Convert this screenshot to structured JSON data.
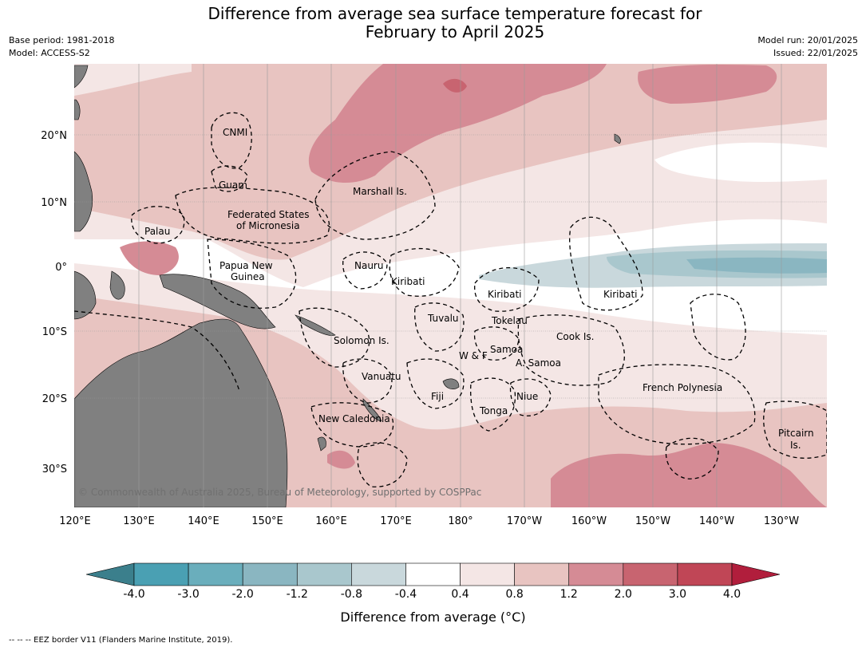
{
  "header": {
    "title_line1": "Difference from average sea surface temperature forecast for",
    "title_line2": "February to April 2025",
    "base_period": "Base period: 1981-2018",
    "model": "Model: ACCESS-S2",
    "model_run": "Model run: 20/01/2025",
    "issued": "Issued: 22/01/2025"
  },
  "map": {
    "lon_labels": [
      "120°E",
      "130°E",
      "140°E",
      "150°E",
      "160°E",
      "170°E",
      "180°",
      "170°W",
      "160°W",
      "150°W",
      "140°W",
      "130°W"
    ],
    "lat_labels": [
      "20°N",
      "10°N",
      "0°",
      "10°S",
      "20°S",
      "30°S"
    ],
    "copyright": "© Commonwealth of Australia 2025, Bureau of Meteorology, supported by COSPPac",
    "places": [
      {
        "name": "CNMI"
      },
      {
        "name": "Guam"
      },
      {
        "name": "Marshall Is."
      },
      {
        "name": "Federated States"
      },
      {
        "name": "of Micronesia"
      },
      {
        "name": "Palau"
      },
      {
        "name": "Papua New"
      },
      {
        "name": "Guinea"
      },
      {
        "name": "Nauru"
      },
      {
        "name": "Kiribati"
      },
      {
        "name": "Kiribati"
      },
      {
        "name": "Kiribati"
      },
      {
        "name": "Tuvalu"
      },
      {
        "name": "Tokelau"
      },
      {
        "name": "Solomon Is."
      },
      {
        "name": "Samoa"
      },
      {
        "name": "W & F"
      },
      {
        "name": "A. Samoa"
      },
      {
        "name": "Cook Is."
      },
      {
        "name": "Vanuatu"
      },
      {
        "name": "Fiji"
      },
      {
        "name": "Niue"
      },
      {
        "name": "French Polynesia"
      },
      {
        "name": "Tonga"
      },
      {
        "name": "New Caledonia"
      },
      {
        "name": "Pitcairn"
      },
      {
        "name": "Is."
      }
    ],
    "colors": {
      "land": "#808080",
      "ocean_bg": "#ffffff"
    }
  },
  "legend": {
    "title": "Difference from average (°C)",
    "title_text": "Difference from average (",
    "title_unit": "°C)",
    "levels": [
      "-4.0",
      "-3.0",
      "-2.0",
      "-1.2",
      "-0.8",
      "-0.4",
      "0.4",
      "0.8",
      "1.2",
      "2.0",
      "3.0",
      "4.0"
    ],
    "colors": [
      "#3b7f8c",
      "#4aa0b3",
      "#6aaebc",
      "#8ab6c1",
      "#a9c7cd",
      "#c9d8dc",
      "#ffffff",
      "#f4e6e5",
      "#e8c4c1",
      "#d58b95",
      "#c86470",
      "#c04656",
      "#b11e3c"
    ]
  },
  "footnote": "--  --  -- EEZ border V11 (Flanders Marine Institute, 2019)."
}
